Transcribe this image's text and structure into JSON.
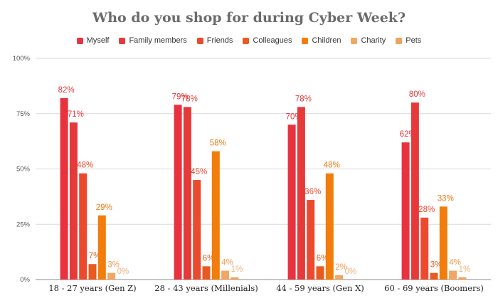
{
  "chart_data": {
    "type": "bar",
    "title": "Who do you shop for during Cyber Week?",
    "xlabel": "",
    "ylabel": "",
    "ylim": [
      0,
      100
    ],
    "y_ticks": [
      "0%",
      "25%",
      "50%",
      "75%",
      "100%"
    ],
    "y_tick_values": [
      0,
      25,
      50,
      75,
      100
    ],
    "grid": true,
    "legend_position": "top-center",
    "categories": [
      "18 - 27 years (Gen Z)",
      "28 - 43 years (Millenials)",
      "44 - 59 years (Gen X)",
      "60 - 69 years (Boomers)"
    ],
    "series": [
      {
        "name": "Myself",
        "color": "#e8333f",
        "label_color": "#e8333f",
        "values": [
          82,
          79,
          70,
          62
        ],
        "labels": [
          "82%",
          "79%",
          "70%",
          "62%"
        ]
      },
      {
        "name": "Family members",
        "color": "#e63a3a",
        "label_color": "#e63a3a",
        "values": [
          71,
          78,
          78,
          80
        ],
        "labels": [
          "71%",
          "78%",
          "78%",
          "80%"
        ]
      },
      {
        "name": "Friends",
        "color": "#ec4a2e",
        "label_color": "#ec4a2e",
        "values": [
          48,
          45,
          36,
          28
        ],
        "labels": [
          "48%",
          "45%",
          "36%",
          "28%"
        ]
      },
      {
        "name": "Colleagues",
        "color": "#e85a1f",
        "label_color": "#e85a1f",
        "values": [
          7,
          6,
          6,
          3
        ],
        "labels": [
          "7%",
          "6%",
          "6%",
          "3%"
        ]
      },
      {
        "name": "Children",
        "color": "#f27d0c",
        "label_color": "#ee7a12",
        "values": [
          29,
          58,
          48,
          33
        ],
        "labels": [
          "29%",
          "58%",
          "48%",
          "33%"
        ]
      },
      {
        "name": "Charity",
        "color": "#f3a663",
        "label_color": "#f19a4e",
        "values": [
          3,
          4,
          2,
          4
        ],
        "labels": [
          "3%",
          "4%",
          "2%",
          "4%"
        ]
      },
      {
        "name": "Pets",
        "color": "#f0a35a",
        "label_color": "#f3b37e",
        "values": [
          0,
          1,
          0,
          1
        ],
        "labels": [
          "0%",
          "1%",
          "0%",
          "1%"
        ]
      }
    ]
  }
}
